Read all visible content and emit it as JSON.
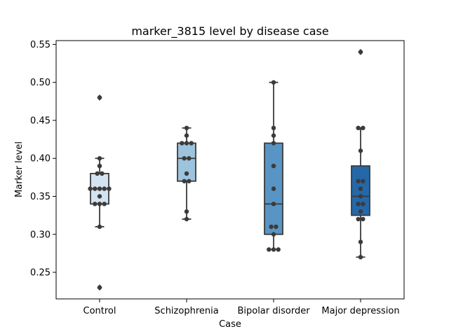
{
  "chart_data": {
    "type": "box",
    "title": "marker_3815 level by disease case",
    "xlabel": "Case",
    "ylabel": "Marker level",
    "ylim": [
      0.215,
      0.555
    ],
    "yticks": [
      "0.25",
      "0.30",
      "0.35",
      "0.40",
      "0.45",
      "0.50",
      "0.55"
    ],
    "grid": false,
    "legend": "none",
    "categories": [
      "Control",
      "Schizophrenia",
      "Bipolar disorder",
      "Major depression"
    ],
    "colors": [
      "#d4e3f1",
      "#9dc4dd",
      "#5895c4",
      "#2468aa"
    ],
    "series": [
      {
        "box": {
          "whisker_low": 0.31,
          "q1": 0.34,
          "median": 0.36,
          "q3": 0.38,
          "whisker_high": 0.4
        },
        "outliers": [
          0.48,
          0.23
        ],
        "points": [
          0.23,
          0.31,
          0.34,
          0.34,
          0.34,
          0.35,
          0.36,
          0.36,
          0.36,
          0.36,
          0.36,
          0.38,
          0.38,
          0.39,
          0.4,
          0.48
        ]
      },
      {
        "box": {
          "whisker_low": 0.32,
          "q1": 0.37,
          "median": 0.4,
          "q3": 0.42,
          "whisker_high": 0.44
        },
        "outliers": [],
        "points": [
          0.32,
          0.33,
          0.37,
          0.37,
          0.38,
          0.4,
          0.4,
          0.42,
          0.42,
          0.42,
          0.43,
          0.44
        ]
      },
      {
        "box": {
          "whisker_low": 0.28,
          "q1": 0.3,
          "median": 0.34,
          "q3": 0.42,
          "whisker_high": 0.5
        },
        "outliers": [],
        "points": [
          0.28,
          0.28,
          0.28,
          0.3,
          0.31,
          0.31,
          0.34,
          0.36,
          0.39,
          0.42,
          0.43,
          0.44,
          0.5
        ]
      },
      {
        "box": {
          "whisker_low": 0.27,
          "q1": 0.325,
          "median": 0.35,
          "q3": 0.39,
          "whisker_high": 0.44
        },
        "outliers": [
          0.54
        ],
        "points": [
          0.27,
          0.29,
          0.32,
          0.32,
          0.33,
          0.34,
          0.34,
          0.35,
          0.36,
          0.37,
          0.37,
          0.41,
          0.44,
          0.44,
          0.54
        ]
      }
    ]
  }
}
